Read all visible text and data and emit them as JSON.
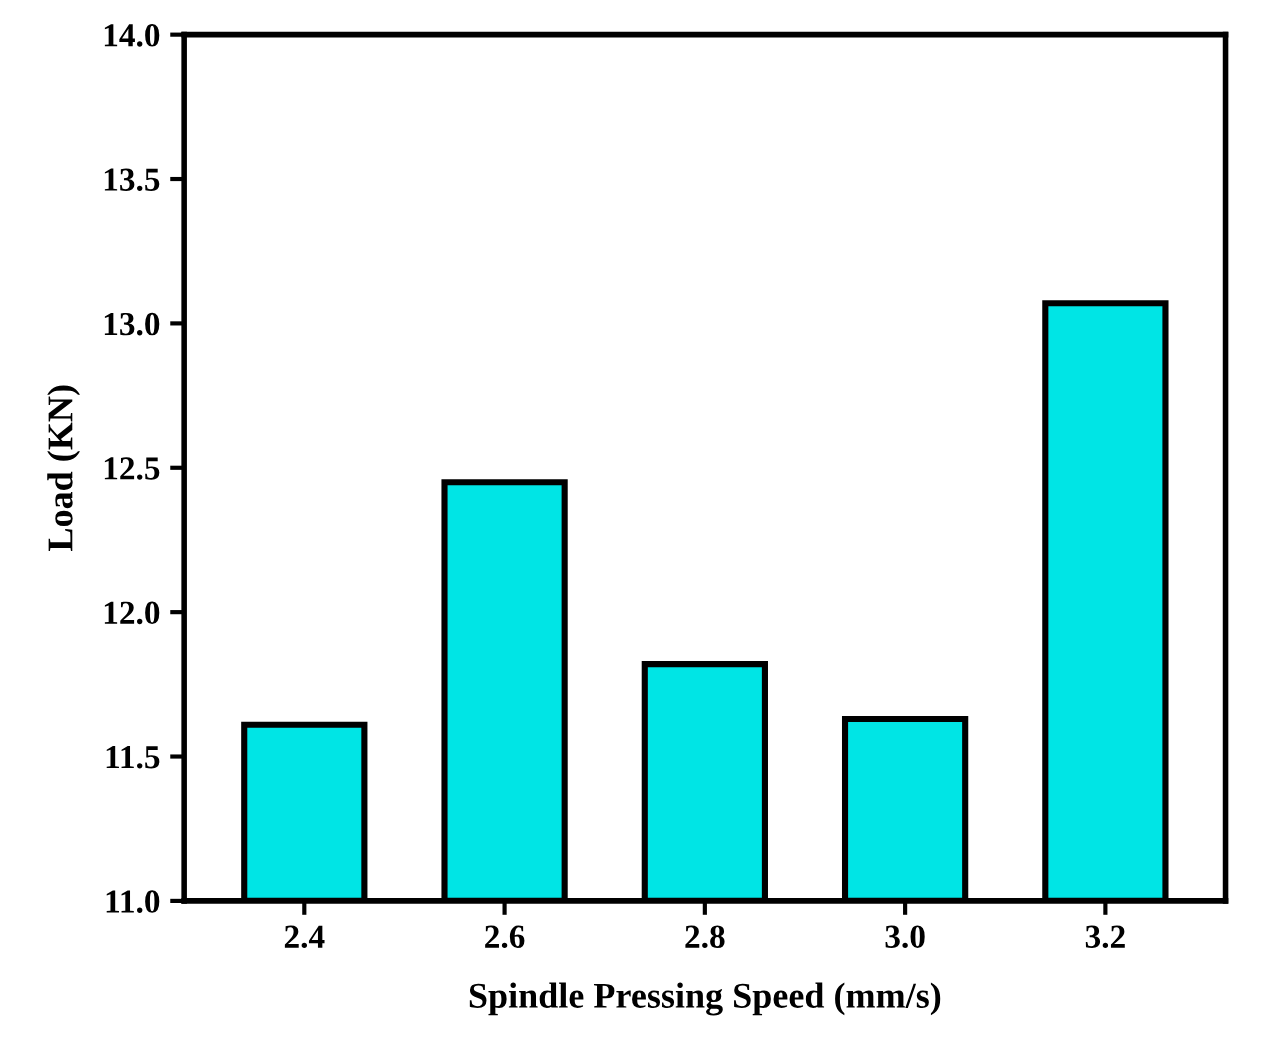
{
  "chart_data": {
    "type": "bar",
    "xlabel": "Spindle Pressing Speed (mm/s)",
    "ylabel": "Load (KN)",
    "categories": [
      "2.4",
      "2.6",
      "2.8",
      "3.0",
      "3.2"
    ],
    "values": [
      11.61,
      12.45,
      11.82,
      11.63,
      13.07
    ],
    "color": "#00e5e5",
    "ylim": [
      11.0,
      14.0
    ],
    "yticks": [
      {
        "value": 11.0,
        "label": "11.0"
      },
      {
        "value": 11.5,
        "label": "11.5"
      },
      {
        "value": 12.0,
        "label": "12.0"
      },
      {
        "value": 12.5,
        "label": "12.5"
      },
      {
        "value": 13.0,
        "label": "13.0"
      },
      {
        "value": 13.5,
        "label": "13.5"
      },
      {
        "value": 14.0,
        "label": "14.0"
      }
    ],
    "grid": false
  }
}
